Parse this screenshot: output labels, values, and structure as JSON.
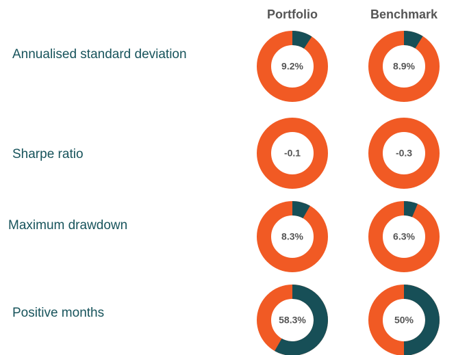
{
  "headers": [
    "Portfolio",
    "Benchmark"
  ],
  "metrics": [
    "Annualised standard deviation",
    "Sharpe ratio",
    "Maximum drawdown",
    "Positive months"
  ],
  "chart_data": [
    {
      "type": "donut",
      "values": [
        9.2
      ],
      "value_labels": [
        "9.2%"
      ],
      "colors": [
        "#174f57",
        "#f15a24"
      ]
    },
    {
      "type": "donut",
      "values": [
        8.9
      ],
      "value_labels": [
        "8.9%"
      ],
      "colors": [
        "#174f57",
        "#f15a24"
      ]
    },
    {
      "type": "donut",
      "values": [
        -0.1
      ],
      "colors": [
        "#174f57",
        "#f15a24"
      ]
    },
    {
      "type": "donut",
      "values": [
        -0.3
      ],
      "colors": [
        "#174f57",
        "#f15a24"
      ]
    },
    {
      "type": "donut",
      "values": [
        8.3
      ],
      "value_labels": [
        "8.3%"
      ],
      "colors": [
        "#174f57",
        "#f15a24"
      ]
    },
    {
      "type": "donut",
      "values": [
        6.3
      ],
      "value_labels": [
        "6.3%"
      ],
      "colors": [
        "#174f57",
        "#f15a24"
      ]
    },
    {
      "type": "donut",
      "values": [
        58.3
      ],
      "value_labels": [
        "58.3%"
      ],
      "colors": [
        "#174f57",
        "#f15a24"
      ]
    },
    {
      "type": "donut",
      "values": [
        50
      ],
      "value_labels": [
        "50%"
      ],
      "colors": [
        "#174f57",
        "#f15a24"
      ]
    }
  ]
}
